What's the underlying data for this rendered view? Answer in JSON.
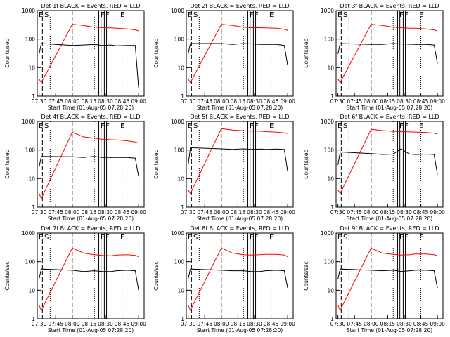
{
  "panels": [
    {
      "title": "Det 1f BLACK = Events, RED = LLD",
      "flags": [
        "E",
        "S",
        "F",
        "F",
        "E"
      ],
      "red": [
        4,
        3,
        330,
        300,
        260,
        250,
        245,
        240,
        225,
        210,
        195
      ],
      "black": [
        30,
        70,
        60,
        62,
        65,
        60,
        62,
        58,
        60,
        60,
        2
      ]
    },
    {
      "title": "Det 2f BLACK = Events, RED = LLD",
      "flags": [
        "E",
        "S",
        "F",
        "F",
        "E"
      ],
      "red": [
        4,
        3,
        330,
        300,
        260,
        250,
        250,
        245,
        240,
        220,
        200
      ],
      "black": [
        30,
        70,
        70,
        65,
        70,
        68,
        65,
        65,
        65,
        60,
        12
      ]
    },
    {
      "title": "Det 3f BLACK = Events, RED = LLD",
      "flags": [
        "E",
        "S",
        "F",
        "F",
        "E"
      ],
      "red": [
        4,
        3,
        330,
        300,
        260,
        250,
        240,
        240,
        225,
        210,
        190
      ],
      "black": [
        30,
        70,
        65,
        65,
        70,
        68,
        66,
        65,
        65,
        62,
        14
      ]
    },
    {
      "title": "Det 4f BLACK = Events, RED = LLD",
      "flags": [
        "E",
        "S",
        "F",
        "F",
        "E"
      ],
      "red": [
        3,
        2,
        420,
        290,
        260,
        240,
        230,
        225,
        210,
        190,
        175
      ],
      "black": [
        25,
        60,
        58,
        55,
        60,
        55,
        55,
        55,
        55,
        52,
        12
      ]
    },
    {
      "title": "Det 5f BLACK = Events, RED = LLD",
      "flags": [
        "E",
        "S",
        "F",
        "F",
        "E"
      ],
      "red": [
        4,
        3,
        560,
        500,
        470,
        460,
        455,
        440,
        420,
        400,
        380
      ],
      "black": [
        30,
        120,
        110,
        105,
        110,
        105,
        108,
        105,
        108,
        105,
        18
      ]
    },
    {
      "title": "Det 6f BLACK = Events, RED = LLD",
      "flags": [
        "E",
        "S",
        "F",
        "F",
        "E"
      ],
      "red": [
        4,
        3,
        530,
        480,
        450,
        440,
        430,
        425,
        410,
        390,
        360
      ],
      "black": [
        30,
        85,
        75,
        70,
        72,
        110,
        72,
        70,
        72,
        70,
        14
      ]
    },
    {
      "title": "Det 7f BLACK = Events, RED = LLD",
      "flags": [
        "E",
        "S",
        "F",
        "F",
        "E"
      ],
      "red": [
        3,
        2,
        300,
        200,
        175,
        165,
        160,
        170,
        175,
        165,
        150
      ],
      "black": [
        25,
        55,
        50,
        45,
        48,
        45,
        45,
        48,
        50,
        48,
        10
      ]
    },
    {
      "title": "Det 8f BLACK = Events, RED = LLD",
      "flags": [
        "E",
        "S",
        "F",
        "F",
        "E"
      ],
      "red": [
        3,
        2,
        300,
        200,
        175,
        170,
        175,
        180,
        180,
        170,
        150
      ],
      "black": [
        25,
        55,
        50,
        48,
        48,
        45,
        45,
        48,
        50,
        48,
        12
      ]
    },
    {
      "title": "Det 9f BLACK = Events, RED = LLD",
      "flags": [
        "E",
        "S",
        "F",
        "F",
        "E"
      ],
      "red": [
        3,
        2,
        300,
        200,
        180,
        170,
        175,
        185,
        185,
        175,
        160
      ],
      "black": [
        25,
        55,
        50,
        48,
        50,
        45,
        48,
        50,
        50,
        48,
        12
      ]
    }
  ],
  "chart_data": {
    "type": "line",
    "xlabel": "Start Time (01-Aug-05 07:28:20)",
    "ylabel": "Counts/sec",
    "yscale": "log",
    "ylim": [
      1,
      1000
    ],
    "yticks": [
      "1",
      "10",
      "100",
      "1000"
    ],
    "xticks": [
      "07:30",
      "07:45",
      "08:00",
      "08:15",
      "08:30",
      "08:45",
      "09:00"
    ],
    "xlim": [
      "07:28:20",
      "09:05:00"
    ],
    "sample_times": [
      "07:30",
      "07:32",
      "08:00",
      "08:10",
      "08:20",
      "08:27",
      "08:35",
      "08:40",
      "08:50",
      "08:57",
      "09:00"
    ],
    "series": [
      {
        "name": "LLD",
        "color": "#ff0000"
      },
      {
        "name": "Events",
        "color": "#000000"
      }
    ],
    "markers": {
      "dashed": [
        "07:33",
        "08:00"
      ],
      "dotted": [
        "07:40",
        "08:20",
        "08:45"
      ],
      "solid": [
        "08:24",
        "08:26",
        "08:29",
        "08:31"
      ]
    },
    "grid": false,
    "legend": "none"
  },
  "colors": {
    "red": "#ff0000",
    "black": "#000000",
    "background": "#ffffff"
  }
}
